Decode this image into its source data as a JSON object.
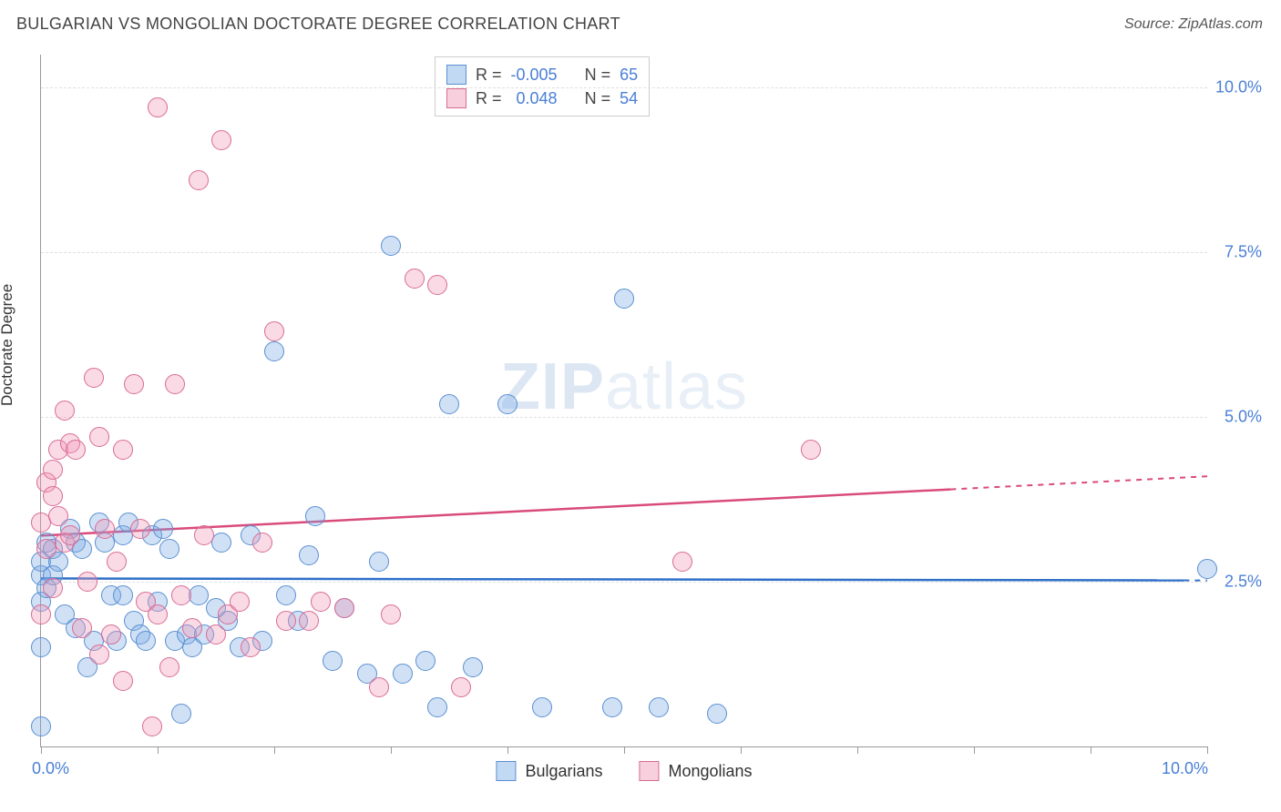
{
  "title": "BULGARIAN VS MONGOLIAN DOCTORATE DEGREE CORRELATION CHART",
  "source_label": "Source: ZipAtlas.com",
  "watermark_a": "ZIP",
  "watermark_b": "atlas",
  "y_axis_title": "Doctorate Degree",
  "chart": {
    "type": "scatter",
    "xlim": [
      0,
      10
    ],
    "ylim": [
      0,
      10.5
    ],
    "x_tick_positions": [
      0,
      1,
      2,
      3,
      4,
      5,
      6,
      7,
      8,
      9,
      10
    ],
    "x_tick_labels_visible": {
      "0": "0.0%",
      "10": "10.0%"
    },
    "y_gridlines": [
      2.5,
      5.0,
      7.5,
      10.0
    ],
    "y_tick_labels": {
      "2.5": "2.5%",
      "5.0": "5.0%",
      "7.5": "7.5%",
      "10.0": "10.0%"
    },
    "background_color": "#ffffff",
    "grid_color": "#e0e0e0",
    "grid_dash": "4 4",
    "axis_color": "#999999",
    "point_radius": 10,
    "point_opacity": 0.4,
    "series": [
      {
        "id": "bulgarians",
        "label": "Bulgarians",
        "color_fill": "#78aae6",
        "color_stroke": "#5a8fd0",
        "class": "pt-b",
        "R": "-0.005",
        "N": "65",
        "trend": {
          "y_at_x0": 2.55,
          "y_at_x10": 2.52,
          "color": "#2f6fc9",
          "solid_until_x": 9.8,
          "dash_from_x": 9.8
        },
        "points": [
          [
            0.0,
            0.3
          ],
          [
            0.0,
            1.5
          ],
          [
            0.0,
            2.2
          ],
          [
            0.0,
            2.6
          ],
          [
            0.0,
            2.8
          ],
          [
            0.05,
            2.4
          ],
          [
            0.05,
            3.1
          ],
          [
            0.1,
            2.6
          ],
          [
            0.1,
            3.0
          ],
          [
            0.15,
            2.8
          ],
          [
            0.2,
            2.0
          ],
          [
            0.25,
            3.3
          ],
          [
            0.3,
            3.1
          ],
          [
            0.3,
            1.8
          ],
          [
            0.35,
            3.0
          ],
          [
            0.4,
            1.2
          ],
          [
            0.45,
            1.6
          ],
          [
            0.5,
            3.4
          ],
          [
            0.55,
            3.1
          ],
          [
            0.6,
            2.3
          ],
          [
            0.65,
            1.6
          ],
          [
            0.7,
            3.2
          ],
          [
            0.7,
            2.3
          ],
          [
            0.75,
            3.4
          ],
          [
            0.8,
            1.9
          ],
          [
            0.85,
            1.7
          ],
          [
            0.9,
            1.6
          ],
          [
            0.95,
            3.2
          ],
          [
            1.0,
            2.2
          ],
          [
            1.05,
            3.3
          ],
          [
            1.1,
            3.0
          ],
          [
            1.15,
            1.6
          ],
          [
            1.2,
            0.5
          ],
          [
            1.25,
            1.7
          ],
          [
            1.3,
            1.5
          ],
          [
            1.35,
            2.3
          ],
          [
            1.4,
            1.7
          ],
          [
            1.5,
            2.1
          ],
          [
            1.55,
            3.1
          ],
          [
            1.6,
            1.9
          ],
          [
            1.7,
            1.5
          ],
          [
            1.8,
            3.2
          ],
          [
            1.9,
            1.6
          ],
          [
            2.0,
            6.0
          ],
          [
            2.1,
            2.3
          ],
          [
            2.2,
            1.9
          ],
          [
            2.3,
            2.9
          ],
          [
            2.35,
            3.5
          ],
          [
            2.5,
            1.3
          ],
          [
            2.6,
            2.1
          ],
          [
            2.8,
            1.1
          ],
          [
            2.9,
            2.8
          ],
          [
            3.0,
            7.6
          ],
          [
            3.1,
            1.1
          ],
          [
            3.3,
            1.3
          ],
          [
            3.4,
            0.6
          ],
          [
            3.5,
            5.2
          ],
          [
            3.7,
            1.2
          ],
          [
            4.0,
            5.2
          ],
          [
            4.3,
            0.6
          ],
          [
            4.9,
            0.6
          ],
          [
            5.0,
            6.8
          ],
          [
            5.3,
            0.6
          ],
          [
            5.8,
            0.5
          ],
          [
            10.0,
            2.7
          ]
        ]
      },
      {
        "id": "mongolians",
        "label": "Mongolians",
        "color_fill": "#f096b4",
        "color_stroke": "#d86b94",
        "class": "pt-m",
        "R": "0.048",
        "N": "54",
        "trend": {
          "y_at_x0": 3.2,
          "y_at_x10": 4.1,
          "color": "#d94b7b",
          "solid_until_x": 7.8,
          "dash_from_x": 7.8
        },
        "points": [
          [
            0.0,
            2.0
          ],
          [
            0.0,
            3.4
          ],
          [
            0.05,
            3.0
          ],
          [
            0.05,
            4.0
          ],
          [
            0.1,
            3.8
          ],
          [
            0.1,
            2.4
          ],
          [
            0.1,
            4.2
          ],
          [
            0.15,
            4.5
          ],
          [
            0.15,
            3.5
          ],
          [
            0.2,
            5.1
          ],
          [
            0.2,
            3.1
          ],
          [
            0.25,
            4.6
          ],
          [
            0.25,
            3.2
          ],
          [
            0.3,
            4.5
          ],
          [
            0.35,
            1.8
          ],
          [
            0.4,
            2.5
          ],
          [
            0.45,
            5.6
          ],
          [
            0.5,
            1.4
          ],
          [
            0.5,
            4.7
          ],
          [
            0.55,
            3.3
          ],
          [
            0.6,
            1.7
          ],
          [
            0.65,
            2.8
          ],
          [
            0.7,
            4.5
          ],
          [
            0.7,
            1.0
          ],
          [
            0.8,
            5.5
          ],
          [
            0.85,
            3.3
          ],
          [
            0.9,
            2.2
          ],
          [
            0.95,
            0.3
          ],
          [
            1.0,
            9.7
          ],
          [
            1.0,
            2.0
          ],
          [
            1.1,
            1.2
          ],
          [
            1.15,
            5.5
          ],
          [
            1.2,
            2.3
          ],
          [
            1.3,
            1.8
          ],
          [
            1.35,
            8.6
          ],
          [
            1.4,
            3.2
          ],
          [
            1.5,
            1.7
          ],
          [
            1.55,
            9.2
          ],
          [
            1.6,
            2.0
          ],
          [
            1.7,
            2.2
          ],
          [
            1.8,
            1.5
          ],
          [
            1.9,
            3.1
          ],
          [
            2.0,
            6.3
          ],
          [
            2.1,
            1.9
          ],
          [
            2.3,
            1.9
          ],
          [
            2.4,
            2.2
          ],
          [
            2.6,
            2.1
          ],
          [
            2.9,
            0.9
          ],
          [
            3.2,
            7.1
          ],
          [
            3.4,
            7.0
          ],
          [
            3.6,
            0.9
          ],
          [
            5.5,
            2.8
          ],
          [
            6.6,
            4.5
          ],
          [
            3.0,
            2.0
          ]
        ]
      }
    ]
  },
  "stats_labels": {
    "R": "R =",
    "N": "N ="
  }
}
